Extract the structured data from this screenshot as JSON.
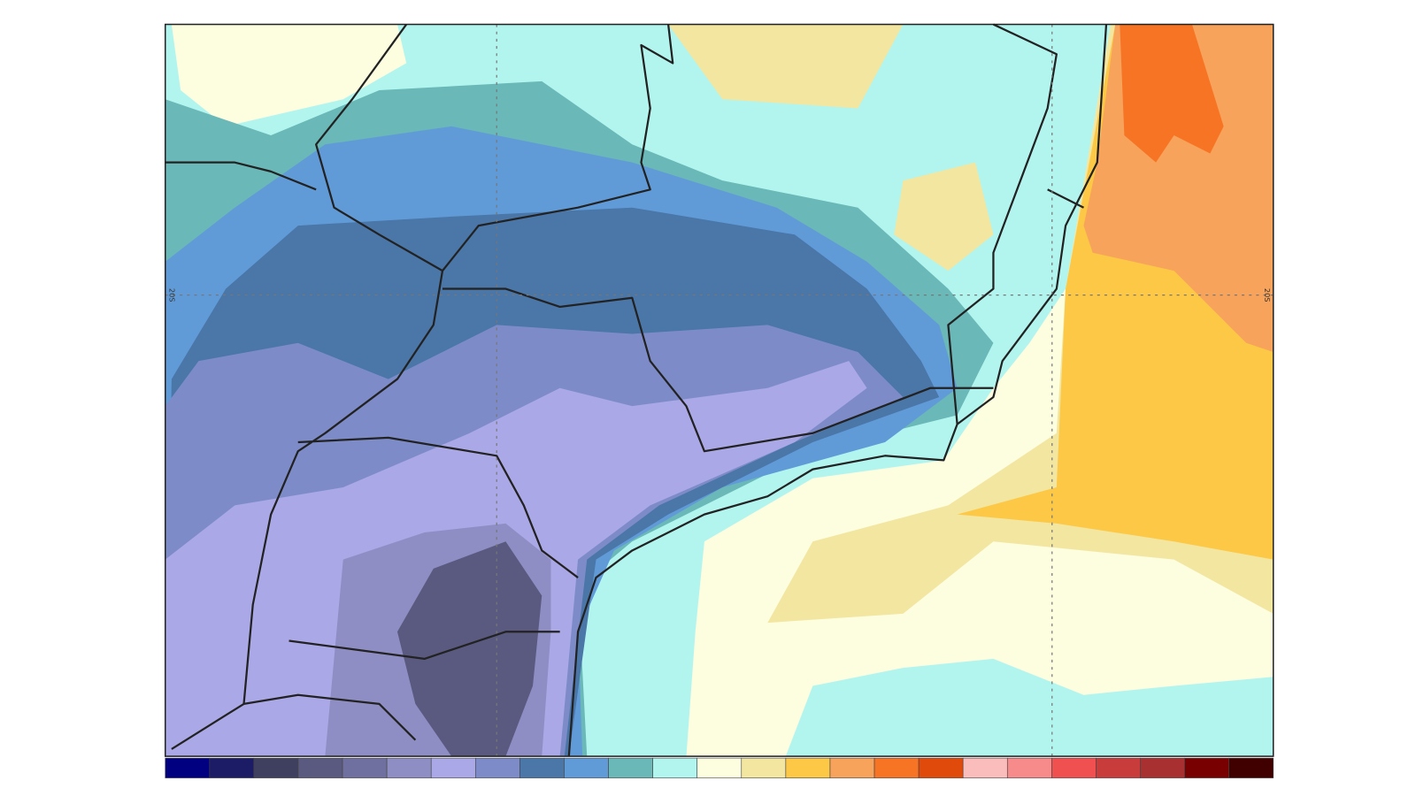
{
  "map": {
    "grid_labels": [
      "20S",
      "20S"
    ],
    "colorbar": {
      "colors": [
        "#000080",
        "#1c1c66",
        "#3f3f5f",
        "#5a5a80",
        "#7070a0",
        "#8e8ec4",
        "#aaa8e6",
        "#7d8cc8",
        "#4a76a8",
        "#609bd8",
        "#6ab8b8",
        "#b2f5ef",
        "#fdfde0",
        "#f2e6a0",
        "#fcc846",
        "#f7a35c",
        "#f77424",
        "#e04a0a",
        "#fbbcbc",
        "#f78a8a",
        "#f05050",
        "#c83c3c",
        "#a83030",
        "#780000",
        "#400000"
      ]
    }
  }
}
